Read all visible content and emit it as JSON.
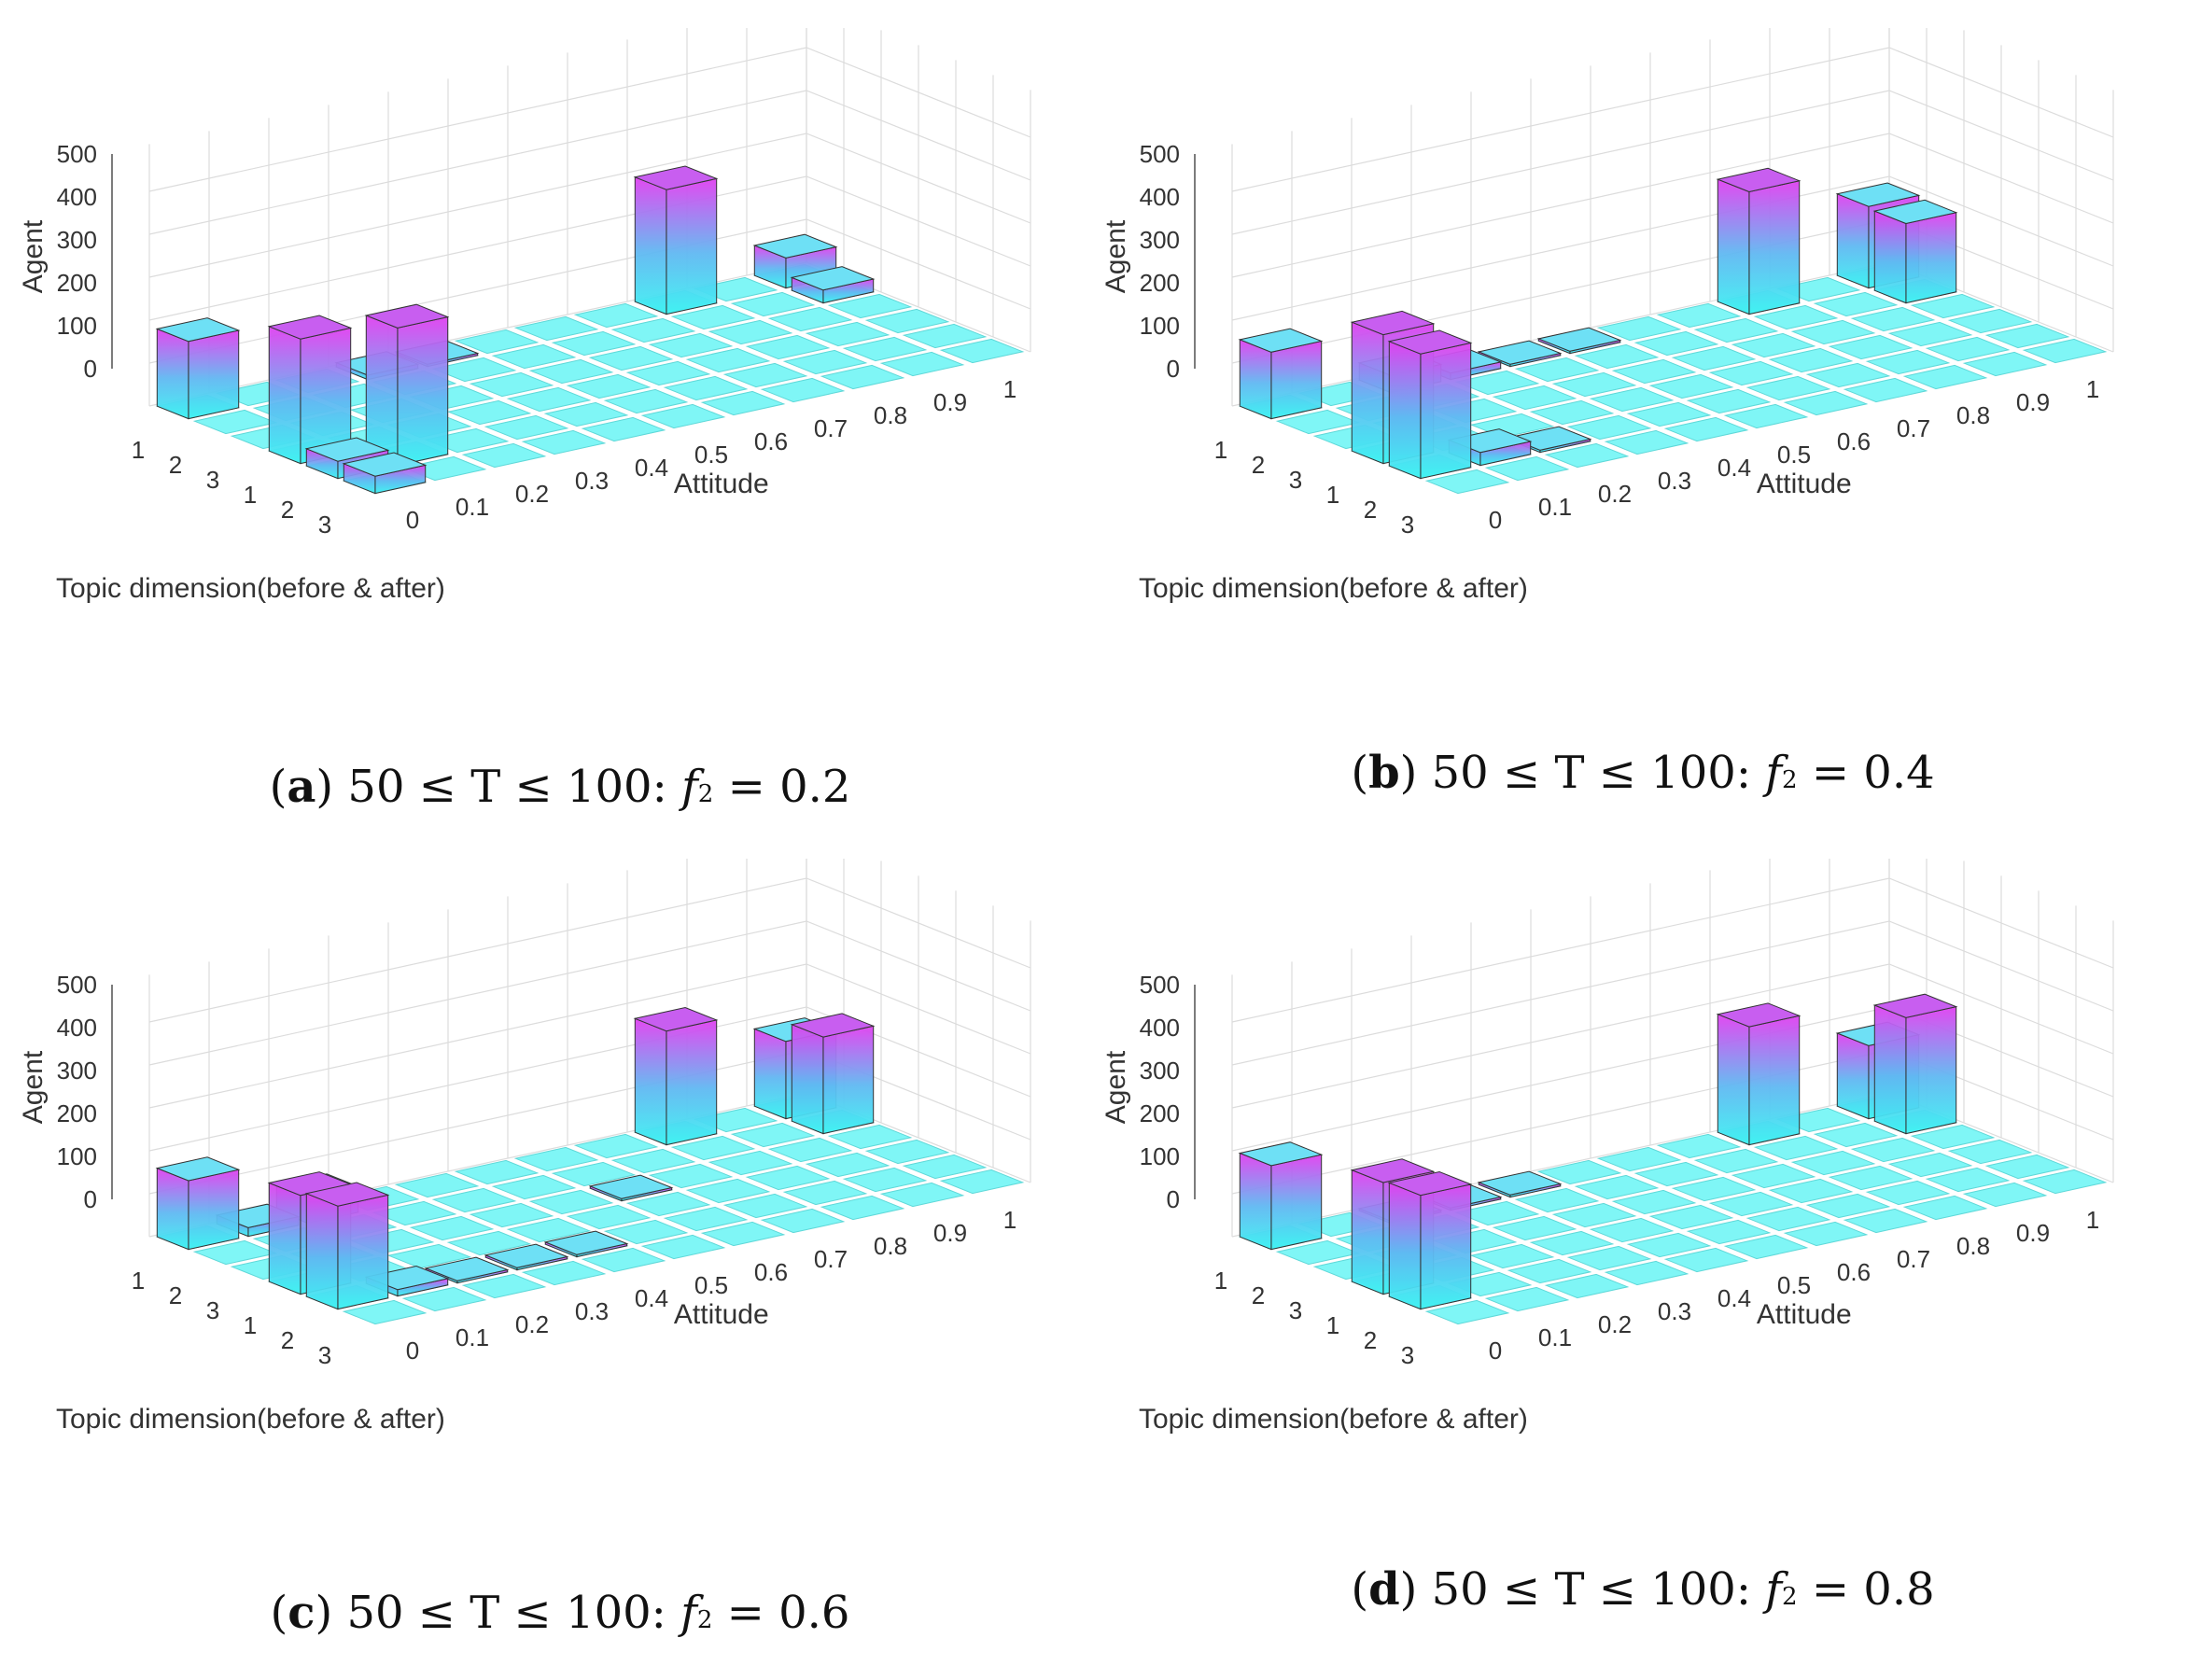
{
  "chart_data": [
    {
      "type": "bar3d",
      "panel_letter": "a",
      "caption_text": "50 ≤ T ≤ 100: ",
      "caption_var": "f",
      "caption_sub": "2",
      "caption_eq": " = 0.2",
      "zlabel": "Agent",
      "xlabel": "Attitude",
      "ylabel": "Topic dimension(before & after)",
      "z_ticks": [
        "0",
        "100",
        "200",
        "300",
        "400",
        "500"
      ],
      "zlim": [
        0,
        500
      ],
      "attitude_ticks": [
        "0",
        "0.1",
        "0.2",
        "0.3",
        "0.4",
        "0.5",
        "0.6",
        "0.7",
        "0.8",
        "0.9",
        "1"
      ],
      "topic_ticks": [
        "1",
        "2",
        "3",
        "1",
        "2",
        "3"
      ],
      "bars": [
        {
          "topic": 0,
          "attitude": 0,
          "value": 180
        },
        {
          "topic": 3,
          "attitude": 0,
          "value": 290
        },
        {
          "topic": 4,
          "attitude": 0,
          "value": 40
        },
        {
          "topic": 5,
          "attitude": 0,
          "value": 40
        },
        {
          "topic": 4,
          "attitude": 1,
          "value": 320
        },
        {
          "topic": 0,
          "attitude": 3,
          "value": 10
        },
        {
          "topic": 0,
          "attitude": 4,
          "value": 5
        },
        {
          "topic": 0,
          "attitude": 8,
          "value": 290
        },
        {
          "topic": 0,
          "attitude": 10,
          "value": 70
        },
        {
          "topic": 1,
          "attitude": 10,
          "value": 30
        }
      ]
    },
    {
      "type": "bar3d",
      "panel_letter": "b",
      "caption_text": "50 ≤ T ≤ 100: ",
      "caption_var": "f",
      "caption_sub": "2",
      "caption_eq": " = 0.4",
      "zlabel": "Agent",
      "xlabel": "Attitude",
      "ylabel": "Topic dimension(before & after)",
      "z_ticks": [
        "0",
        "100",
        "200",
        "300",
        "400",
        "500"
      ],
      "zlim": [
        0,
        500
      ],
      "attitude_ticks": [
        "0",
        "0.1",
        "0.2",
        "0.3",
        "0.4",
        "0.5",
        "0.6",
        "0.7",
        "0.8",
        "0.9",
        "1"
      ],
      "topic_ticks": [
        "1",
        "2",
        "3",
        "1",
        "2",
        "3"
      ],
      "bars": [
        {
          "topic": 0,
          "attitude": 0,
          "value": 155
        },
        {
          "topic": 3,
          "attitude": 0,
          "value": 300
        },
        {
          "topic": 4,
          "attitude": 0,
          "value": 290
        },
        {
          "topic": 4,
          "attitude": 1,
          "value": 30
        },
        {
          "topic": 4,
          "attitude": 2,
          "value": 5
        },
        {
          "topic": 0,
          "attitude": 2,
          "value": 40
        },
        {
          "topic": 0,
          "attitude": 3,
          "value": 15
        },
        {
          "topic": 0,
          "attitude": 4,
          "value": 5
        },
        {
          "topic": 0,
          "attitude": 5,
          "value": 5
        },
        {
          "topic": 0,
          "attitude": 8,
          "value": 285
        },
        {
          "topic": 0,
          "attitude": 10,
          "value": 190
        },
        {
          "topic": 1,
          "attitude": 10,
          "value": 185
        }
      ]
    },
    {
      "type": "bar3d",
      "panel_letter": "c",
      "caption_text": "50 ≤ T ≤ 100: ",
      "caption_var": "f",
      "caption_sub": "2",
      "caption_eq": " = 0.6",
      "zlabel": "Agent",
      "xlabel": "Attitude",
      "ylabel": "Topic dimension(before & after)",
      "z_ticks": [
        "0",
        "100",
        "200",
        "300",
        "400",
        "500"
      ],
      "zlim": [
        0,
        500
      ],
      "attitude_ticks": [
        "0",
        "0.1",
        "0.2",
        "0.3",
        "0.4",
        "0.5",
        "0.6",
        "0.7",
        "0.8",
        "0.9",
        "1"
      ],
      "topic_ticks": [
        "1",
        "2",
        "3",
        "1",
        "2",
        "3"
      ],
      "bars": [
        {
          "topic": 0,
          "attitude": 0,
          "value": 160
        },
        {
          "topic": 3,
          "attitude": 0,
          "value": 230
        },
        {
          "topic": 4,
          "attitude": 0,
          "value": 240
        },
        {
          "topic": 4,
          "attitude": 1,
          "value": 15
        },
        {
          "topic": 4,
          "attitude": 2,
          "value": 5
        },
        {
          "topic": 4,
          "attitude": 3,
          "value": 5
        },
        {
          "topic": 4,
          "attitude": 4,
          "value": 5
        },
        {
          "topic": 0,
          "attitude": 1,
          "value": 20
        },
        {
          "topic": 0,
          "attitude": 2,
          "value": 60
        },
        {
          "topic": 0,
          "attitude": 8,
          "value": 265
        },
        {
          "topic": 2,
          "attitude": 6,
          "value": 5
        },
        {
          "topic": 0,
          "attitude": 10,
          "value": 180
        },
        {
          "topic": 1,
          "attitude": 10,
          "value": 225
        }
      ]
    },
    {
      "type": "bar3d",
      "panel_letter": "d",
      "caption_text": "50 ≤ T ≤ 100: ",
      "caption_var": "f",
      "caption_sub": "2",
      "caption_eq": " = 0.8",
      "zlabel": "Agent",
      "xlabel": "Attitude",
      "ylabel": "Topic dimension(before & after)",
      "z_ticks": [
        "0",
        "100",
        "200",
        "300",
        "400",
        "500"
      ],
      "zlim": [
        0,
        500
      ],
      "attitude_ticks": [
        "0",
        "0.1",
        "0.2",
        "0.3",
        "0.4",
        "0.5",
        "0.6",
        "0.7",
        "0.8",
        "0.9",
        "1"
      ],
      "topic_ticks": [
        "1",
        "2",
        "3",
        "1",
        "2",
        "3"
      ],
      "bars": [
        {
          "topic": 0,
          "attitude": 0,
          "value": 195
        },
        {
          "topic": 3,
          "attitude": 0,
          "value": 260
        },
        {
          "topic": 4,
          "attitude": 0,
          "value": 265
        },
        {
          "topic": 0,
          "attitude": 2,
          "value": 5
        },
        {
          "topic": 0,
          "attitude": 3,
          "value": 5
        },
        {
          "topic": 0,
          "attitude": 4,
          "value": 5
        },
        {
          "topic": 0,
          "attitude": 8,
          "value": 275
        },
        {
          "topic": 0,
          "attitude": 10,
          "value": 170
        },
        {
          "topic": 1,
          "attitude": 10,
          "value": 270
        }
      ]
    }
  ]
}
